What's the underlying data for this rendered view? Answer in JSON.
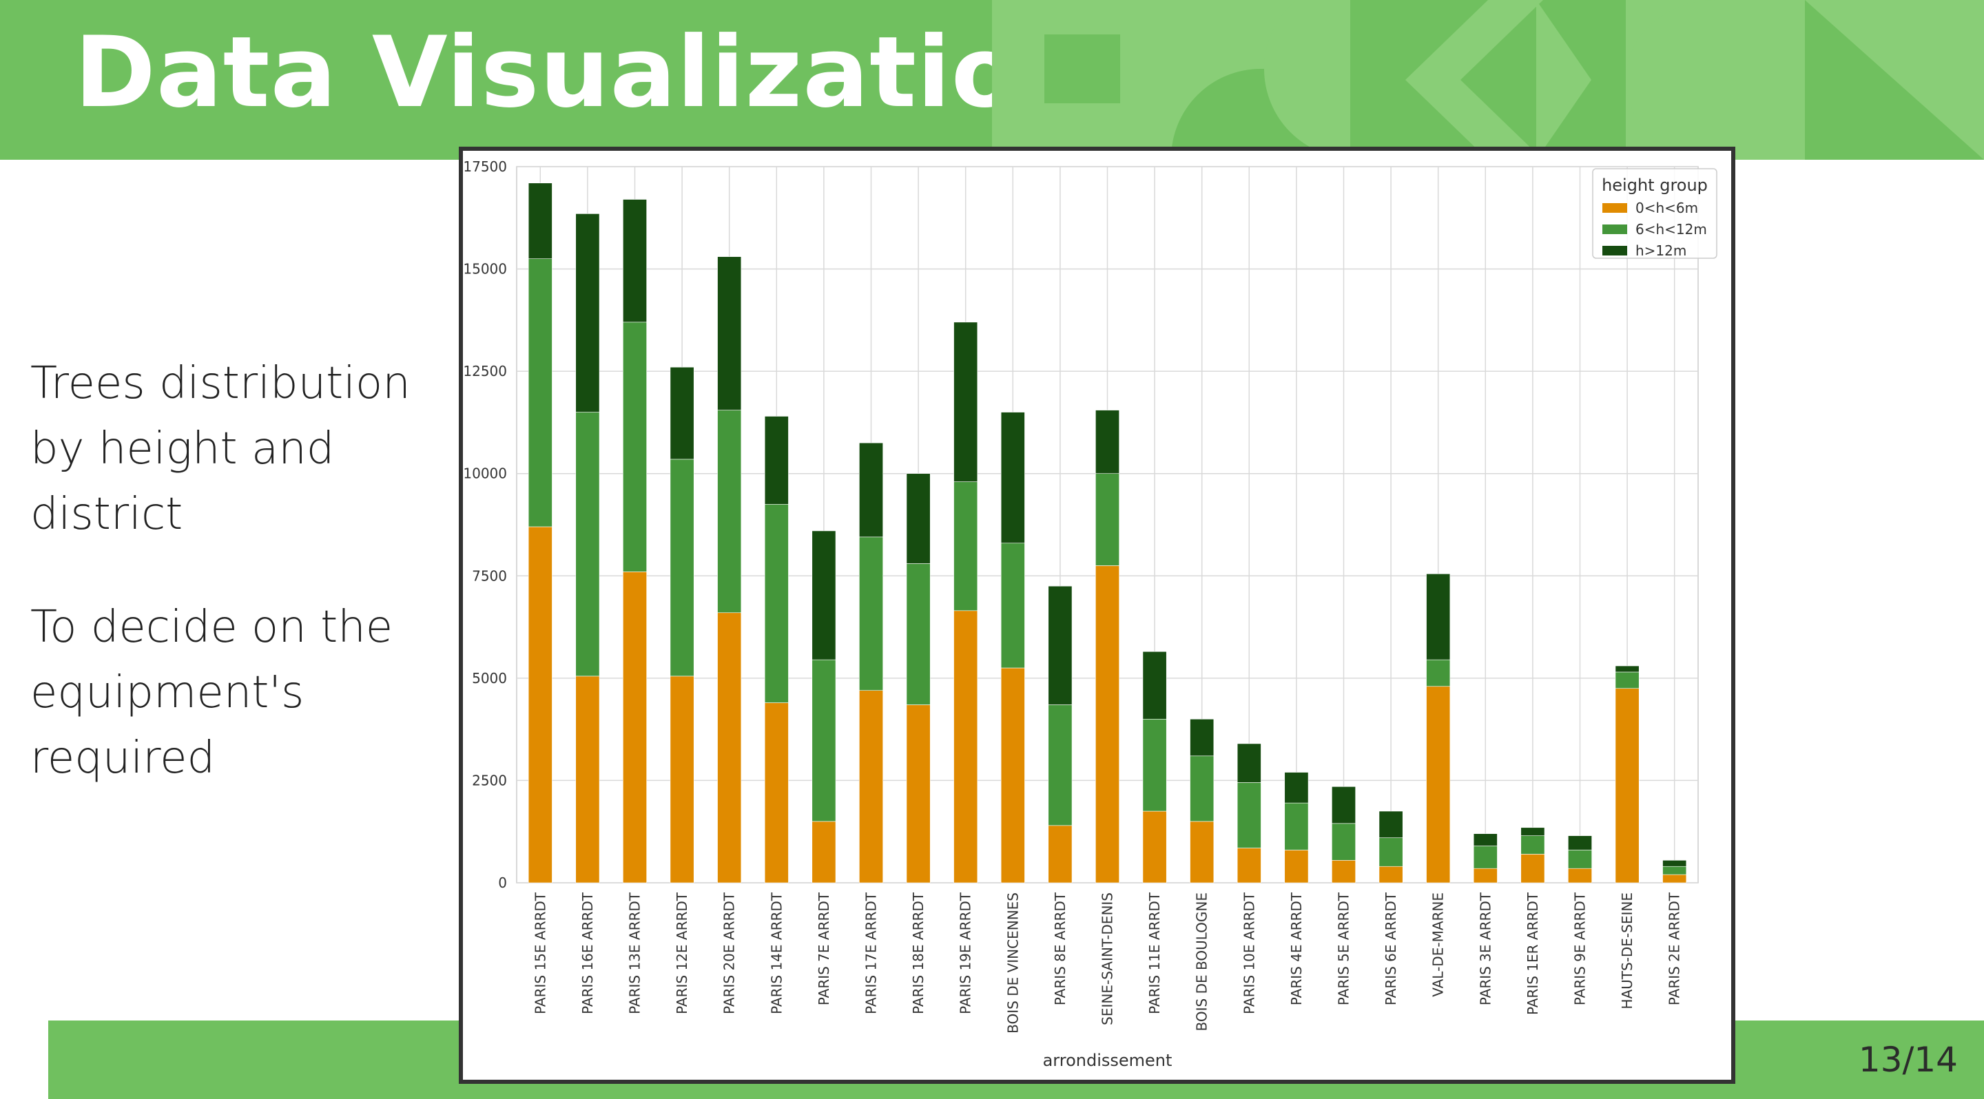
{
  "header": {
    "title": "Data Visualization"
  },
  "side": {
    "paragraph1": [
      "Trees distribution",
      "by height and",
      "district"
    ],
    "paragraph2": [
      "To decide on the",
      "equipment's",
      "required"
    ]
  },
  "footer": {
    "page": "13/14"
  },
  "colors": {
    "brand_green": "#70c05f",
    "series": [
      "#e08b00",
      "#44963a",
      "#164c10"
    ]
  },
  "icons": [
    "square-shape",
    "circle-shape",
    "diamond-shape",
    "triangle-shape"
  ],
  "chart_data": {
    "type": "bar",
    "stacked": true,
    "title": "",
    "xlabel": "arrondissement",
    "ylabel": "",
    "ylim": [
      0,
      17500
    ],
    "yticks": [
      0,
      2500,
      5000,
      7500,
      10000,
      12500,
      15000,
      17500
    ],
    "grid": true,
    "legend_title": "height group",
    "legend_position": "top-right",
    "categories": [
      "PARIS 15E ARRDT",
      "PARIS 16E ARRDT",
      "PARIS 13E ARRDT",
      "PARIS 12E ARRDT",
      "PARIS 20E ARRDT",
      "PARIS 14E ARRDT",
      "PARIS 7E ARRDT",
      "PARIS 17E ARRDT",
      "PARIS 18E ARRDT",
      "PARIS 19E ARRDT",
      "BOIS DE VINCENNES",
      "PARIS 8E ARRDT",
      "SEINE-SAINT-DENIS",
      "PARIS 11E ARRDT",
      "BOIS DE BOULOGNE",
      "PARIS 10E ARRDT",
      "PARIS 4E ARRDT",
      "PARIS 5E ARRDT",
      "PARIS 6E ARRDT",
      "VAL-DE-MARNE",
      "PARIS 3E ARRDT",
      "PARIS 1ER ARRDT",
      "PARIS 9E ARRDT",
      "HAUTS-DE-SEINE",
      "PARIS 2E ARRDT"
    ],
    "series": [
      {
        "name": "0<h<6m",
        "color": "#e08b00",
        "values": [
          8700,
          5050,
          7600,
          5050,
          6600,
          4400,
          1500,
          4700,
          4350,
          6650,
          5250,
          1400,
          7750,
          1750,
          1500,
          850,
          800,
          550,
          400,
          4800,
          350,
          700,
          350,
          4750,
          200
        ]
      },
      {
        "name": "6<h<12m",
        "color": "#44963a",
        "values": [
          6550,
          6450,
          6100,
          5300,
          4950,
          4850,
          3950,
          3750,
          3450,
          3150,
          3050,
          2950,
          2250,
          2250,
          1600,
          1600,
          1150,
          900,
          700,
          650,
          550,
          450,
          450,
          400,
          200
        ]
      },
      {
        "name": "h>12m",
        "color": "#164c10",
        "values": [
          1850,
          4850,
          3000,
          2250,
          3750,
          2150,
          3150,
          2300,
          2200,
          3900,
          3200,
          2900,
          1550,
          1650,
          900,
          950,
          750,
          900,
          650,
          2100,
          300,
          200,
          350,
          150,
          150
        ]
      }
    ]
  }
}
